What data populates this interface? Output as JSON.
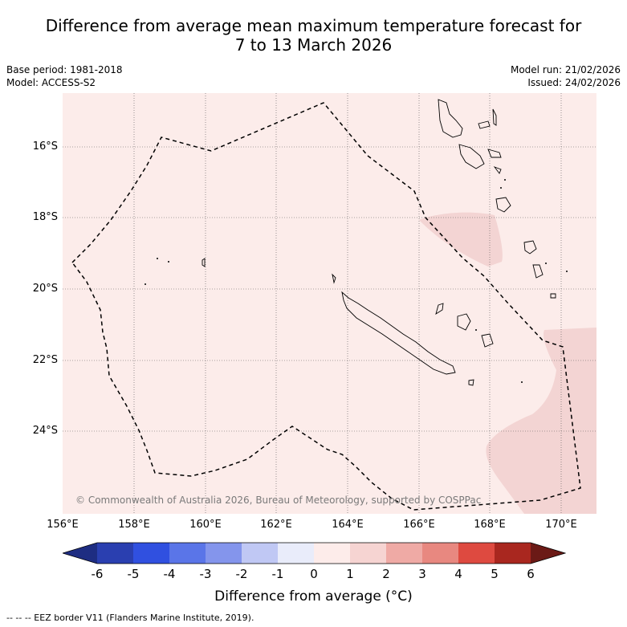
{
  "title_line1": "Difference from average mean maximum temperature forecast for",
  "title_line2": "7 to 13 March 2026",
  "base_period": "Base period: 1981-2018",
  "model": "Model: ACCESS-S2",
  "model_run": "Model run: 21/02/2026",
  "issued": "Issued: 24/02/2026",
  "copyright": "© Commonwealth of Australia 2026, Bureau of Meteorology, supported by COSPPac",
  "lat_labels": [
    "16°S",
    "18°S",
    "20°S",
    "22°S",
    "24°S"
  ],
  "lon_labels": [
    "156°E",
    "158°E",
    "160°E",
    "162°E",
    "164°E",
    "166°E",
    "168°E",
    "170°E"
  ],
  "colorbar": {
    "ticks": [
      "-6",
      "-5",
      "-4",
      "-3",
      "-2",
      "-1",
      "0",
      "1",
      "2",
      "3",
      "4",
      "5",
      "6"
    ],
    "colors": [
      "#1e2d82",
      "#2a3fb0",
      "#3050e0",
      "#5a75e8",
      "#8495ec",
      "#c0c8f4",
      "#e9ecfa",
      "#fdecea",
      "#f6d4d2",
      "#efaaa5",
      "#e88880",
      "#de4a40",
      "#a9271f",
      "#6b1a16"
    ],
    "label": "Difference from average (°C)"
  },
  "legend_line": "--  --  -- EEZ border V11 (Flanders Marine Institute, 2019).",
  "map_colors": {
    "background": "#fcecea",
    "warm_patch": "#f3d4d3"
  }
}
